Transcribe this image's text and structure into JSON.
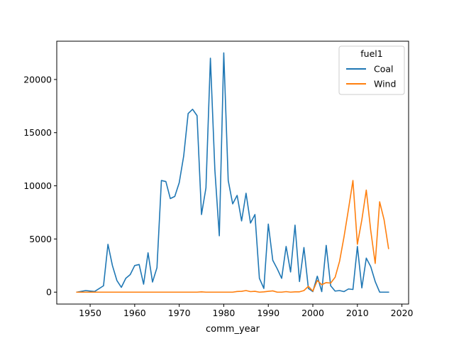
{
  "chart_data": {
    "type": "line",
    "xlabel": "comm_year",
    "ylabel": "",
    "xlim": [
      1942.5,
      2021.5
    ],
    "ylim": [
      -1120,
      23600
    ],
    "x_ticks": [
      1950,
      1960,
      1970,
      1980,
      1990,
      2000,
      2010,
      2020
    ],
    "y_ticks": [
      0,
      5000,
      10000,
      15000,
      20000
    ],
    "grid": false,
    "legend": {
      "title": "fuel1",
      "placement": "top-right"
    },
    "series": [
      {
        "name": "Coal",
        "color": "#1f77b4",
        "points": [
          [
            1947,
            0
          ],
          [
            1949,
            150
          ],
          [
            1951,
            60
          ],
          [
            1953,
            600
          ],
          [
            1954,
            4500
          ],
          [
            1955,
            2500
          ],
          [
            1956,
            1100
          ],
          [
            1957,
            450
          ],
          [
            1958,
            1300
          ],
          [
            1959,
            1650
          ],
          [
            1960,
            2500
          ],
          [
            1961,
            2600
          ],
          [
            1962,
            750
          ],
          [
            1963,
            3700
          ],
          [
            1964,
            950
          ],
          [
            1965,
            2300
          ],
          [
            1966,
            10500
          ],
          [
            1967,
            10400
          ],
          [
            1968,
            8800
          ],
          [
            1969,
            9000
          ],
          [
            1970,
            10300
          ],
          [
            1971,
            12800
          ],
          [
            1972,
            16800
          ],
          [
            1973,
            17200
          ],
          [
            1974,
            16600
          ],
          [
            1975,
            7300
          ],
          [
            1976,
            9800
          ],
          [
            1977,
            22000
          ],
          [
            1978,
            11500
          ],
          [
            1979,
            5300
          ],
          [
            1980,
            22500
          ],
          [
            1981,
            10500
          ],
          [
            1982,
            8300
          ],
          [
            1983,
            9100
          ],
          [
            1984,
            6700
          ],
          [
            1985,
            9300
          ],
          [
            1986,
            6500
          ],
          [
            1987,
            7300
          ],
          [
            1988,
            1300
          ],
          [
            1989,
            350
          ],
          [
            1990,
            6400
          ],
          [
            1991,
            3000
          ],
          [
            1992,
            2200
          ],
          [
            1993,
            1300
          ],
          [
            1994,
            4300
          ],
          [
            1995,
            1900
          ],
          [
            1996,
            6300
          ],
          [
            1997,
            1000
          ],
          [
            1998,
            4200
          ],
          [
            1999,
            350
          ],
          [
            2000,
            50
          ],
          [
            2001,
            1500
          ],
          [
            2002,
            50
          ],
          [
            2003,
            4400
          ],
          [
            2004,
            600
          ],
          [
            2005,
            100
          ],
          [
            2006,
            150
          ],
          [
            2007,
            50
          ],
          [
            2008,
            300
          ],
          [
            2009,
            250
          ],
          [
            2010,
            4300
          ],
          [
            2011,
            400
          ],
          [
            2012,
            3200
          ],
          [
            2013,
            2400
          ],
          [
            2014,
            1000
          ],
          [
            2015,
            0
          ],
          [
            2016,
            0
          ],
          [
            2017,
            0
          ]
        ]
      },
      {
        "name": "Wind",
        "color": "#ff7f0e",
        "points": [
          [
            1947,
            0
          ],
          [
            1950,
            0
          ],
          [
            1955,
            0
          ],
          [
            1960,
            0
          ],
          [
            1965,
            0
          ],
          [
            1970,
            0
          ],
          [
            1974,
            0
          ],
          [
            1975,
            30
          ],
          [
            1976,
            0
          ],
          [
            1980,
            0
          ],
          [
            1982,
            0
          ],
          [
            1983,
            60
          ],
          [
            1984,
            80
          ],
          [
            1985,
            150
          ],
          [
            1986,
            50
          ],
          [
            1987,
            80
          ],
          [
            1988,
            0
          ],
          [
            1989,
            30
          ],
          [
            1990,
            80
          ],
          [
            1991,
            120
          ],
          [
            1992,
            0
          ],
          [
            1993,
            0
          ],
          [
            1994,
            50
          ],
          [
            1995,
            0
          ],
          [
            1996,
            30
          ],
          [
            1997,
            30
          ],
          [
            1998,
            150
          ],
          [
            1999,
            550
          ],
          [
            2000,
            100
          ],
          [
            2001,
            1100
          ],
          [
            2002,
            700
          ],
          [
            2003,
            900
          ],
          [
            2004,
            850
          ],
          [
            2005,
            1400
          ],
          [
            2006,
            2900
          ],
          [
            2007,
            5200
          ],
          [
            2008,
            7800
          ],
          [
            2009,
            10500
          ],
          [
            2010,
            4500
          ],
          [
            2011,
            6800
          ],
          [
            2012,
            9600
          ],
          [
            2013,
            5800
          ],
          [
            2014,
            2700
          ],
          [
            2015,
            8500
          ],
          [
            2016,
            6800
          ],
          [
            2017,
            4100
          ]
        ]
      }
    ]
  }
}
